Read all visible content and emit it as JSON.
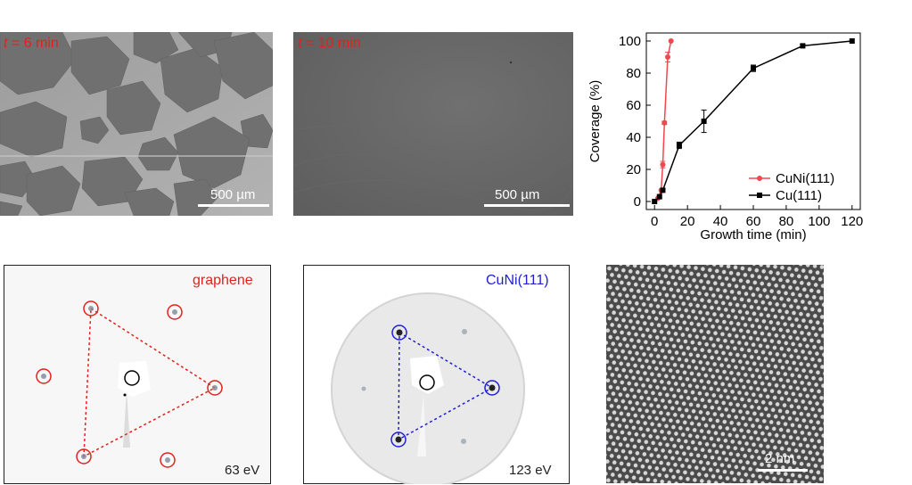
{
  "panels": {
    "sem_6": {
      "time_var": "t",
      "time_text": " = 6 min",
      "scale": "500 µm"
    },
    "sem_10": {
      "time_var": "t",
      "time_text": " = 10 min",
      "scale": "500 µm"
    },
    "leed_graphene": {
      "label": "graphene",
      "energy": "63 eV",
      "label_color": "#e3211c"
    },
    "leed_cuni": {
      "label": "CuNi(111)",
      "energy": "123 eV",
      "label_color": "#1f1fd6"
    },
    "stm": {
      "scale": "2 nm"
    }
  },
  "chart_data": {
    "type": "line",
    "xlabel": "Growth time (min)",
    "ylabel": "Coverage (%)",
    "xlim": [
      -5,
      125
    ],
    "ylim": [
      -5,
      105
    ],
    "xticks": [
      0,
      20,
      40,
      60,
      80,
      100,
      120
    ],
    "yticks": [
      0,
      20,
      40,
      60,
      80,
      100
    ],
    "legend_position": "bottom-right",
    "series": [
      {
        "name": "CuNi(111)",
        "color": "#f0484e",
        "marker": "circle",
        "x": [
          0,
          2,
          4,
          5,
          6,
          8,
          10
        ],
        "y": [
          0,
          2,
          7,
          23,
          49,
          90,
          100
        ],
        "err": [
          0,
          0,
          0,
          2,
          1,
          3,
          0
        ]
      },
      {
        "name": "Cu(111)",
        "color": "#000000",
        "marker": "square",
        "x": [
          0,
          3,
          5,
          15,
          30,
          60,
          90,
          120
        ],
        "y": [
          0,
          3,
          7,
          35,
          50,
          83,
          97,
          100
        ],
        "err": [
          0,
          0,
          0,
          2,
          7,
          2,
          1,
          0
        ]
      }
    ]
  }
}
